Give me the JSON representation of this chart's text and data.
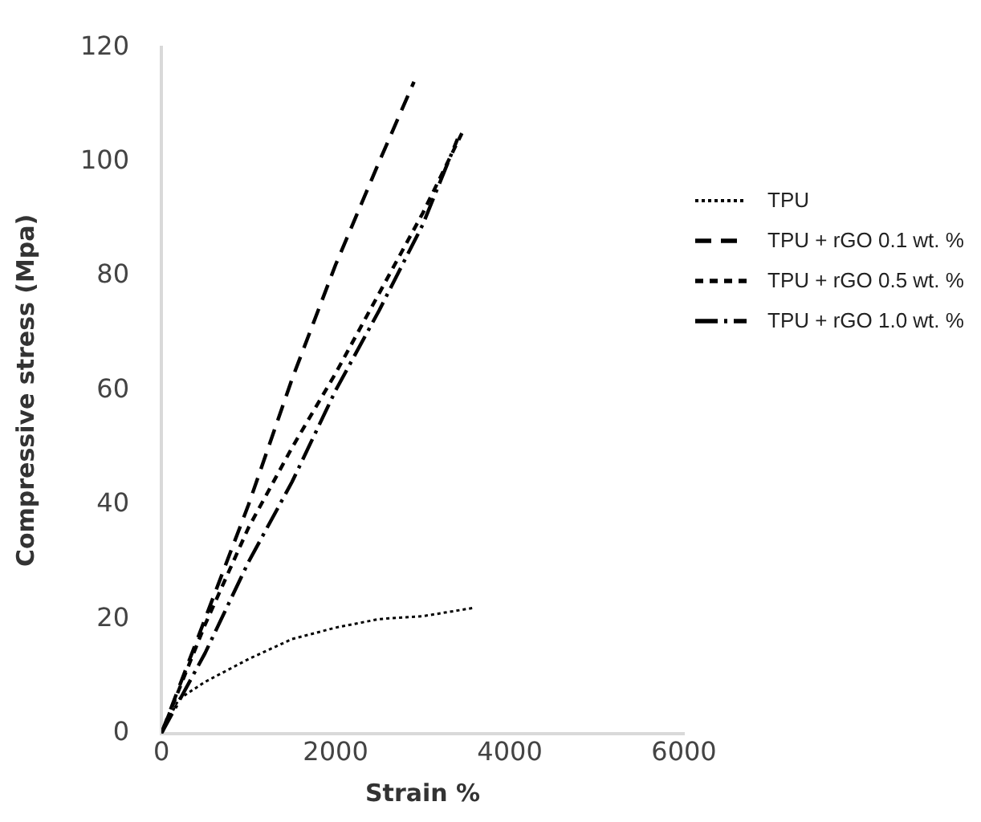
{
  "chart_data": {
    "type": "line",
    "xlabel": "Strain %",
    "ylabel": "Compressive stress (Mpa)",
    "xlim": [
      0,
      6000
    ],
    "xticks": [
      0,
      2000,
      4000,
      6000
    ],
    "ylim": [
      0,
      120
    ],
    "yticks": [
      0,
      20,
      40,
      60,
      80,
      100,
      120
    ],
    "grid": false,
    "legend": "right",
    "marker": "none",
    "series": [
      {
        "name": "TPU",
        "color": "#000000",
        "line_style": "dotted",
        "x": [
          0,
          200,
          500,
          1000,
          1500,
          2000,
          2500,
          3000,
          3600
        ],
        "values": [
          0,
          6,
          9,
          13,
          16.5,
          18.5,
          20,
          20.5,
          22
        ]
      },
      {
        "name": "TPU + rGO 0.1 wt. %",
        "color": "#000000",
        "line_style": "dashed",
        "x": [
          0,
          500,
          1000,
          1500,
          2000,
          2500,
          2900
        ],
        "values": [
          0,
          20,
          40,
          62,
          82,
          100,
          114
        ]
      },
      {
        "name": "TPU + rGO 0.5 wt. %",
        "color": "#000000",
        "line_style": "dashed",
        "x": [
          0,
          500,
          1000,
          1500,
          2000,
          2500,
          3000,
          3450
        ],
        "values": [
          0,
          19,
          36,
          50,
          63,
          77,
          91,
          105
        ]
      },
      {
        "name": "TPU + rGO 1.0 wt. %",
        "color": "#000000",
        "line_style": "dashed",
        "x": [
          0,
          500,
          1000,
          1500,
          2000,
          2500,
          3000,
          3400
        ],
        "values": [
          0,
          14,
          30,
          44,
          60,
          74,
          89,
          104
        ]
      }
    ]
  }
}
